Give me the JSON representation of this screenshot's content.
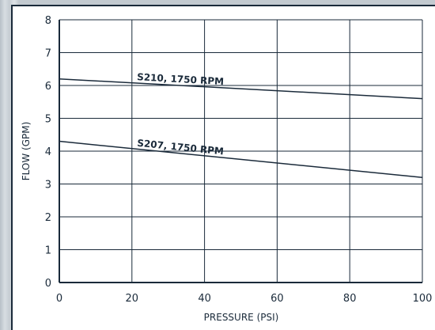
{
  "chart_data": {
    "type": "line",
    "title": "",
    "xlabel": "PRESSURE (PSI)",
    "ylabel": "FLOW (GPM)",
    "xlim": [
      0,
      100
    ],
    "ylim": [
      0,
      8
    ],
    "x_ticks": [
      0,
      20,
      40,
      60,
      80,
      100
    ],
    "y_ticks": [
      0,
      1,
      2,
      3,
      4,
      5,
      6,
      7,
      8
    ],
    "grid": true,
    "legend": "none",
    "series": [
      {
        "name": "S210, 1750 RPM",
        "x": [
          0,
          100
        ],
        "y": [
          6.2,
          5.6
        ]
      },
      {
        "name": "S207, 1750 RPM",
        "x": [
          0,
          100
        ],
        "y": [
          4.3,
          3.2
        ]
      }
    ]
  },
  "colors": {
    "axis": "#1a2a3a",
    "line": "#1a2a3a",
    "grid": "#1a2a3a"
  }
}
